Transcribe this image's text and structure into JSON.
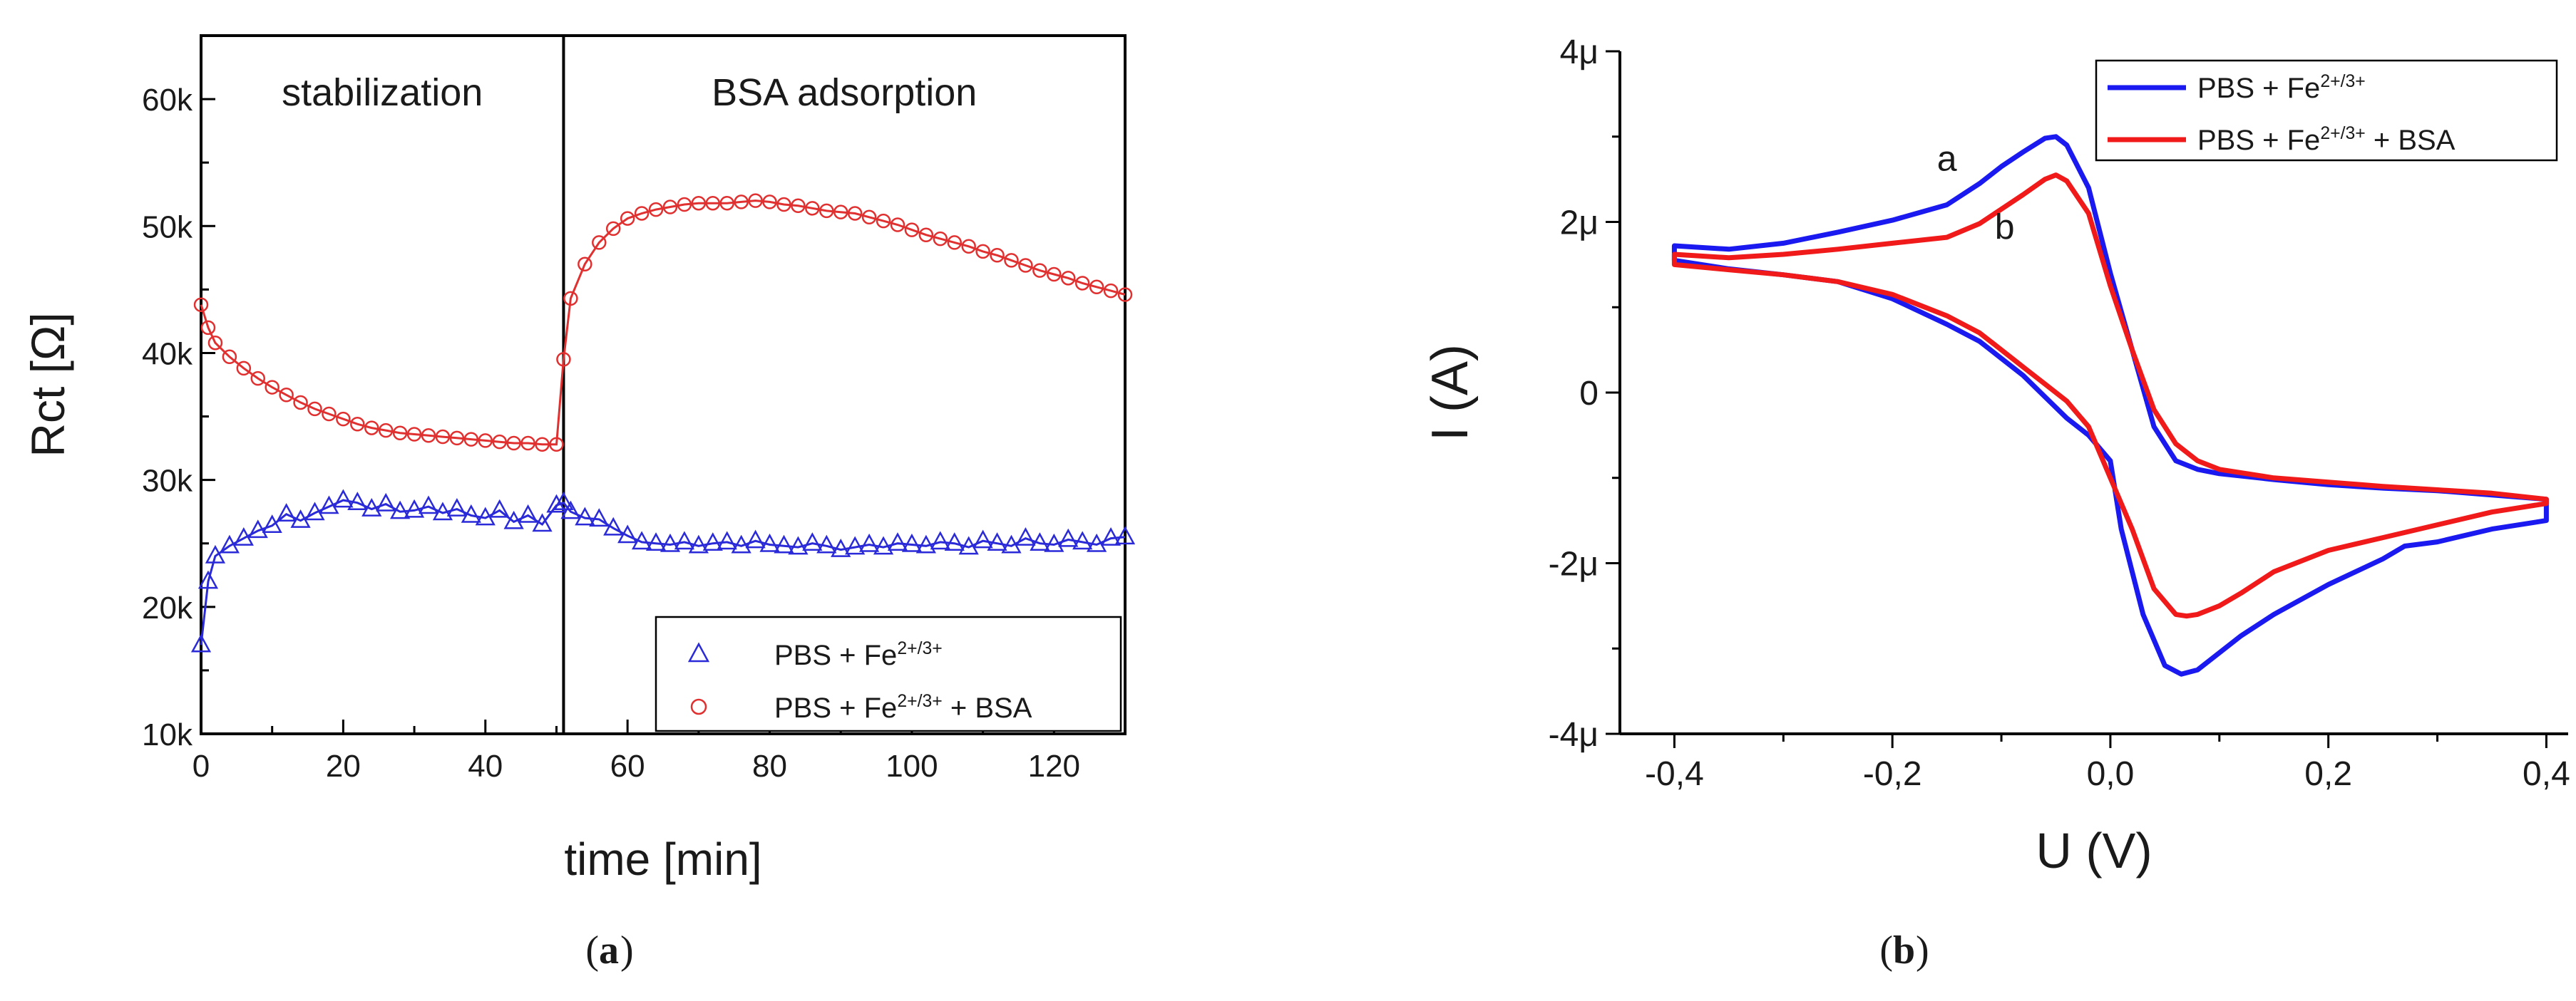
{
  "chart_data": [
    {
      "id": "a",
      "type": "scatter",
      "caption_letter": "a",
      "xlabel": "time [min]",
      "ylabel": "Rct [Ω]",
      "xlim": [
        0,
        130
      ],
      "ylim": [
        10000,
        65000
      ],
      "x_ticks": [
        0,
        20,
        40,
        60,
        80,
        100,
        120
      ],
      "x_tick_labels": [
        "0",
        "20",
        "40",
        "60",
        "80",
        "100",
        "120"
      ],
      "y_ticks": [
        10000,
        20000,
        30000,
        40000,
        50000,
        60000
      ],
      "y_tick_labels": [
        "10k",
        "20k",
        "30k",
        "40k",
        "50k",
        "60k"
      ],
      "divider_x": 51,
      "region_labels": [
        "stabilization",
        "BSA adsorption"
      ],
      "legend_position": "bottom-right",
      "series": [
        {
          "name": "PBS + Fe2+/3+",
          "legend_prefix": "PBS + Fe",
          "legend_sup": "2+/3+",
          "legend_suffix": "",
          "marker": "triangle",
          "color": "#2a2ad8",
          "x": [
            0,
            1,
            2,
            4,
            6,
            8,
            10,
            12,
            14,
            16,
            18,
            20,
            22,
            24,
            26,
            28,
            30,
            32,
            34,
            36,
            38,
            40,
            42,
            44,
            46,
            48,
            50,
            51,
            52,
            54,
            56,
            58,
            60,
            62,
            64,
            66,
            68,
            70,
            72,
            74,
            76,
            78,
            80,
            82,
            84,
            86,
            88,
            90,
            92,
            94,
            96,
            98,
            100,
            102,
            104,
            106,
            108,
            110,
            112,
            114,
            116,
            118,
            120,
            122,
            124,
            126,
            128,
            130
          ],
          "y": [
            17000,
            22000,
            24000,
            24800,
            25400,
            26000,
            26400,
            27300,
            26800,
            27400,
            27900,
            28400,
            28200,
            27700,
            28100,
            27500,
            27600,
            27900,
            27400,
            27700,
            27200,
            27000,
            27600,
            26700,
            27200,
            26500,
            28000,
            28200,
            27500,
            27000,
            26900,
            26200,
            25600,
            25100,
            25000,
            24900,
            25100,
            24800,
            25000,
            25100,
            24800,
            25200,
            24900,
            24800,
            24700,
            25000,
            24800,
            24500,
            24700,
            24900,
            24700,
            25000,
            24900,
            24800,
            25100,
            25000,
            24700,
            25200,
            25000,
            24800,
            25400,
            25000,
            24900,
            25300,
            25100,
            24900,
            25400,
            25500
          ]
        },
        {
          "name": "PBS + Fe2+/3+ + BSA",
          "legend_prefix": "PBS + Fe",
          "legend_sup": "2+/3+",
          "legend_suffix": " + BSA",
          "marker": "circle",
          "color": "#e03030",
          "x": [
            0,
            1,
            2,
            4,
            6,
            8,
            10,
            12,
            14,
            16,
            18,
            20,
            22,
            24,
            26,
            28,
            30,
            32,
            34,
            36,
            38,
            40,
            42,
            44,
            46,
            48,
            50,
            51,
            52,
            54,
            56,
            58,
            60,
            62,
            64,
            66,
            68,
            70,
            72,
            74,
            76,
            78,
            80,
            82,
            84,
            86,
            88,
            90,
            92,
            94,
            96,
            98,
            100,
            102,
            104,
            106,
            108,
            110,
            112,
            114,
            116,
            118,
            120,
            122,
            124,
            126,
            128,
            130
          ],
          "y": [
            43800,
            42000,
            40800,
            39700,
            38800,
            38000,
            37300,
            36700,
            36100,
            35600,
            35200,
            34800,
            34400,
            34100,
            33900,
            33700,
            33600,
            33500,
            33400,
            33300,
            33200,
            33100,
            33000,
            32900,
            32900,
            32800,
            32800,
            39500,
            44300,
            47000,
            48700,
            49800,
            50600,
            51000,
            51300,
            51500,
            51700,
            51800,
            51800,
            51800,
            51900,
            52000,
            51900,
            51700,
            51600,
            51400,
            51200,
            51100,
            51000,
            50700,
            50400,
            50100,
            49700,
            49300,
            49000,
            48700,
            48400,
            48000,
            47700,
            47300,
            46900,
            46500,
            46200,
            45900,
            45500,
            45200,
            44900,
            44600
          ]
        }
      ]
    },
    {
      "id": "b",
      "type": "line",
      "caption_letter": "b",
      "xlabel": "U (V)",
      "ylabel": "I (A)",
      "xlim": [
        -0.45,
        0.42
      ],
      "ylim": [
        -4e-06,
        4e-06
      ],
      "x_ticks": [
        -0.4,
        -0.2,
        0.0,
        0.2,
        0.4
      ],
      "x_tick_labels": [
        "-0,4",
        "-0,2",
        "0,0",
        "0,2",
        "0,4"
      ],
      "y_ticks": [
        -4e-06,
        -2e-06,
        0,
        2e-06,
        4e-06
      ],
      "y_tick_labels": [
        "-4μ",
        "-2μ",
        "0",
        "2μ",
        "4μ"
      ],
      "legend_position": "top-right",
      "annotations": [
        {
          "text": "a",
          "x": -0.15,
          "y": 2.6e-06
        },
        {
          "text": "b",
          "x": -0.097,
          "y": 1.8e-06
        }
      ],
      "series": [
        {
          "name": "PBS + Fe2+/3+",
          "legend_prefix": "PBS + Fe",
          "legend_sup": "2+/3+",
          "legend_suffix": "",
          "color": "#1a1af0",
          "x": [
            -0.4,
            -0.35,
            -0.3,
            -0.25,
            -0.2,
            -0.15,
            -0.12,
            -0.1,
            -0.08,
            -0.06,
            -0.05,
            -0.04,
            -0.02,
            0.0,
            0.02,
            0.04,
            0.06,
            0.08,
            0.1,
            0.15,
            0.2,
            0.25,
            0.3,
            0.35,
            0.4,
            0.4,
            0.35,
            0.3,
            0.27,
            0.25,
            0.2,
            0.15,
            0.12,
            0.1,
            0.08,
            0.065,
            0.05,
            0.03,
            0.01,
            0.0,
            -0.02,
            -0.04,
            -0.06,
            -0.08,
            -0.1,
            -0.12,
            -0.15,
            -0.2,
            -0.25,
            -0.3,
            -0.35,
            -0.4
          ],
          "y": [
            1.72e-06,
            1.68e-06,
            1.75e-06,
            1.88e-06,
            2.02e-06,
            2.2e-06,
            2.45e-06,
            2.65e-06,
            2.82e-06,
            2.98e-06,
            3e-06,
            2.9e-06,
            2.4e-06,
            1.4e-06,
            5e-07,
            -4e-07,
            -8e-07,
            -9e-07,
            -9.5e-07,
            -1.02e-06,
            -1.08e-06,
            -1.12e-06,
            -1.15e-06,
            -1.2e-06,
            -1.25e-06,
            -1.5e-06,
            -1.6e-06,
            -1.75e-06,
            -1.8e-06,
            -1.95e-06,
            -2.25e-06,
            -2.6e-06,
            -2.85e-06,
            -3.05e-06,
            -3.25e-06,
            -3.3e-06,
            -3.2e-06,
            -2.6e-06,
            -1.6e-06,
            -8e-07,
            -5e-07,
            -3e-07,
            -5e-08,
            2e-07,
            4e-07,
            6e-07,
            8e-07,
            1.1e-06,
            1.3e-06,
            1.38e-06,
            1.45e-06,
            1.55e-06
          ]
        },
        {
          "name": "PBS + Fe2+/3+ + BSA",
          "legend_prefix": "PBS + Fe",
          "legend_sup": "2+/3+",
          "legend_suffix": " + BSA",
          "color": "#f01a1a",
          "x": [
            -0.4,
            -0.35,
            -0.3,
            -0.25,
            -0.2,
            -0.15,
            -0.12,
            -0.1,
            -0.08,
            -0.06,
            -0.05,
            -0.04,
            -0.02,
            0.0,
            0.02,
            0.04,
            0.06,
            0.08,
            0.1,
            0.15,
            0.2,
            0.25,
            0.3,
            0.35,
            0.4,
            0.4,
            0.35,
            0.3,
            0.25,
            0.2,
            0.15,
            0.12,
            0.1,
            0.08,
            0.07,
            0.06,
            0.04,
            0.02,
            0.0,
            -0.02,
            -0.04,
            -0.06,
            -0.08,
            -0.1,
            -0.12,
            -0.15,
            -0.2,
            -0.25,
            -0.3,
            -0.35,
            -0.4
          ],
          "y": [
            1.62e-06,
            1.58e-06,
            1.62e-06,
            1.68e-06,
            1.75e-06,
            1.82e-06,
            1.98e-06,
            2.15e-06,
            2.32e-06,
            2.5e-06,
            2.55e-06,
            2.48e-06,
            2.1e-06,
            1.25e-06,
            5e-07,
            -2e-07,
            -6e-07,
            -8e-07,
            -9e-07,
            -1e-06,
            -1.05e-06,
            -1.1e-06,
            -1.14e-06,
            -1.18e-06,
            -1.25e-06,
            -1.3e-06,
            -1.4e-06,
            -1.55e-06,
            -1.7e-06,
            -1.85e-06,
            -2.1e-06,
            -2.35e-06,
            -2.5e-06,
            -2.6e-06,
            -2.62e-06,
            -2.6e-06,
            -2.3e-06,
            -1.6e-06,
            -1e-06,
            -4e-07,
            -1e-07,
            1e-07,
            3e-07,
            5e-07,
            7e-07,
            9e-07,
            1.15e-06,
            1.3e-06,
            1.38e-06,
            1.44e-06,
            1.5e-06
          ]
        }
      ]
    }
  ]
}
